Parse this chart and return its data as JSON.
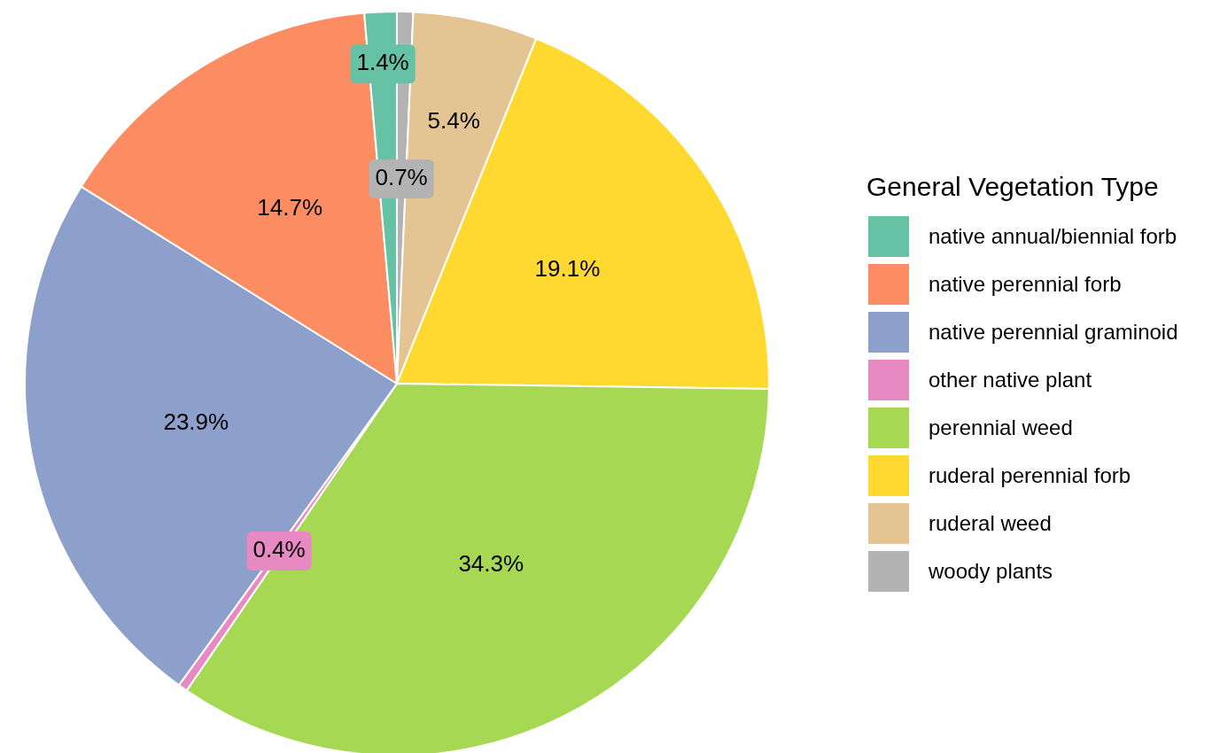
{
  "chart_data": {
    "type": "pie",
    "legend_title": "General Vegetation Type",
    "legend": "right",
    "categories": [
      "native annual/biennial forb",
      "native perennial forb",
      "native perennial graminoid",
      "other native plant",
      "perennial weed",
      "ruderal perennial forb",
      "ruderal weed",
      "woody plants"
    ],
    "values": [
      1.4,
      14.7,
      23.9,
      0.4,
      34.3,
      19.1,
      5.4,
      0.7
    ],
    "colors": [
      "#66c2a5",
      "#fc8d62",
      "#8da0cb",
      "#e78ac3",
      "#a6d854",
      "#ffd92f",
      "#e5c494",
      "#b3b3b3"
    ],
    "value_labels": [
      "1.4%",
      "14.7%",
      "23.9%",
      "0.4%",
      "34.3%",
      "19.1%",
      "5.4%",
      "0.7%"
    ]
  }
}
